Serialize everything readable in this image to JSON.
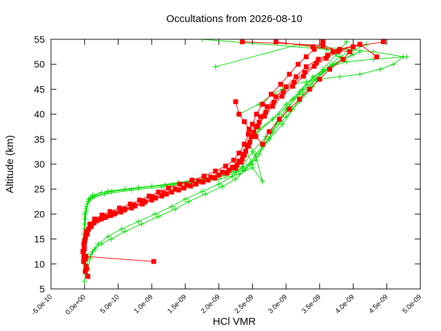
{
  "chart_data": {
    "type": "line",
    "title": "Occultations from 2026-08-10",
    "xlabel": "HCl VMR",
    "ylabel": "Altitude (km)",
    "xlim": [
      -5e-10,
      5e-09
    ],
    "ylim": [
      5,
      55
    ],
    "x_ticks": [
      {
        "v": -5e-10,
        "label": "-5.0e-10"
      },
      {
        "v": 0,
        "label": "0.0e+00"
      },
      {
        "v": 5e-10,
        "label": "5.0e-10"
      },
      {
        "v": 1e-09,
        "label": "1.0e-09"
      },
      {
        "v": 1.5e-09,
        "label": "1.5e-09"
      },
      {
        "v": 2e-09,
        "label": "2.0e-09"
      },
      {
        "v": 2.5e-09,
        "label": "2.5e-09"
      },
      {
        "v": 3e-09,
        "label": "3.0e-09"
      },
      {
        "v": 3.5e-09,
        "label": "3.5e-09"
      },
      {
        "v": 4e-09,
        "label": "4.0e-09"
      },
      {
        "v": 4.5e-09,
        "label": "4.5e-09"
      },
      {
        "v": 5e-09,
        "label": "5.0e-09"
      }
    ],
    "y_ticks": [
      {
        "v": 5,
        "label": "5"
      },
      {
        "v": 10,
        "label": "10"
      },
      {
        "v": 15,
        "label": "15"
      },
      {
        "v": 20,
        "label": "20"
      },
      {
        "v": 25,
        "label": "25"
      },
      {
        "v": 30,
        "label": "30"
      },
      {
        "v": 35,
        "label": "35"
      },
      {
        "v": 40,
        "label": "40"
      },
      {
        "v": 45,
        "label": "45"
      },
      {
        "v": 50,
        "label": "50"
      },
      {
        "v": 55,
        "label": "55"
      }
    ],
    "grid": false,
    "legend": "none",
    "series": [
      {
        "color": "#00dd00",
        "marker": "plus",
        "profiles": [
          {
            "x": [
              0.0,
              2e-11,
              5e-11,
              1e-10,
              1.5e-10,
              2.5e-10,
              4e-10,
              6e-10,
              8.5e-10,
              1.1e-09,
              1.35e-09,
              1.55e-09,
              1.8e-09,
              2.05e-09,
              2.25e-09,
              2.4e-09,
              2.55e-09,
              2.75e-09,
              2.95e-09,
              3.1e-09,
              3.25e-09,
              3.45e-09,
              3.7e-09,
              4e-09
            ],
            "y": [
              6.5,
              9,
              11,
              12,
              13,
              14,
              15,
              16.5,
              18,
              19.5,
              21,
              22.5,
              24,
              25.5,
              27,
              29,
              32,
              35,
              38,
              41,
              44,
              47,
              50,
              52
            ]
          },
          {
            "x": [
              5e-11,
              8e-11,
              1.2e-10,
              2e-10,
              3.5e-10,
              5.5e-10,
              8e-10,
              1.05e-09,
              1.3e-09,
              1.5e-09,
              1.75e-09,
              2e-09,
              2.2e-09,
              2.35e-09,
              2.5e-09,
              2.7e-09,
              2.9e-09,
              3.05e-09,
              3.2e-09,
              3.4e-09,
              3.65e-09,
              3.9e-09,
              4.3e-09,
              4.8e-09
            ],
            "y": [
              9,
              11,
              12.5,
              14,
              15.5,
              17,
              18.5,
              20,
              21.5,
              23,
              24.5,
              26,
              27.5,
              29.5,
              32.5,
              35.5,
              38.5,
              41.5,
              44.5,
              47.5,
              49.5,
              50.5,
              51,
              51.5
            ]
          },
          {
            "x": [
              3e-11,
              1e-11,
              -1e-11,
              0.0,
              4e-11,
              1.5e-10,
              4e-10,
              8e-10,
              1.2e-09,
              1.6e-09,
              1.95e-09,
              2.25e-09,
              2.45e-09,
              2.6e-09,
              2.75e-09,
              2.85e-09,
              3e-09,
              3.2e-09,
              3.45e-09,
              3.7e-09,
              4.1e-09
            ],
            "y": [
              8,
              12,
              16,
              20,
              22,
              23.5,
              24.5,
              25.2,
              25.8,
              26.6,
              27.5,
              28.5,
              30,
              32,
              35,
              38,
              41,
              44,
              47,
              50,
              52.5
            ]
          },
          {
            "x": [
              1e-11,
              -5e-12,
              0.0,
              2e-11,
              6e-11,
              2.5e-10,
              6e-10,
              1e-09,
              1.4e-09,
              1.8e-09,
              2.1e-09,
              2.35e-09,
              2.55e-09,
              2.65e-09,
              2.8e-09,
              3e-09,
              3.2e-09,
              3.4e-09,
              3.55e-09,
              3.8e-09,
              4.2e-09
            ],
            "y": [
              10,
              14,
              18,
              21,
              23,
              24.3,
              25.0,
              25.6,
              26.3,
              27.2,
              28.2,
              29.2,
              30.8,
              33.5,
              36.5,
              39.5,
              42.5,
              45.5,
              48.5,
              51.5,
              54
            ]
          },
          {
            "x": [
              2e-11,
              0.0,
              1e-11,
              3e-11,
              9e-11,
              3e-10,
              7e-10,
              1.15e-09,
              1.6e-09,
              2e-09,
              2.3e-09,
              2.5e-09,
              2.65e-09,
              2.55e-09,
              2.45e-09,
              2.6e-09,
              2.9e-09,
              3.1e-09,
              3.3e-09,
              3.55e-09,
              3.75e-09,
              3.9e-09
            ],
            "y": [
              11,
              15,
              19,
              21.5,
              23.2,
              24.0,
              24.8,
              25.4,
              26.2,
              27.0,
              28.0,
              29.3,
              26.5,
              31.5,
              34,
              37,
              40,
              43,
              46,
              49,
              52,
              54.5
            ]
          },
          {
            "x": [
              1.5e-11,
              5e-12,
              2.5e-11,
              5e-11,
              1.2e-10,
              3.5e-10,
              8e-10,
              1.3e-09,
              1.75e-09,
              2.1e-09,
              2.35e-09,
              2.5e-09,
              2.4e-09,
              2.55e-09,
              2.8e-09,
              3e-09,
              3.25e-09,
              3.5e-09,
              3.85e-09,
              3.6e-09,
              1.75e-09
            ],
            "y": [
              12,
              17,
              20.5,
              22.5,
              23.8,
              24.6,
              25.3,
              25.9,
              26.7,
              27.7,
              28.7,
              29.9,
              33,
              36,
              39,
              42,
              45,
              48,
              51,
              53,
              55
            ]
          },
          {
            "x": [
              2.3e-09,
              2.6e-09,
              2.8e-09,
              2.95e-09,
              3.1e-09,
              3.3e-09,
              3.5e-09,
              3.8e-09,
              4.1e-09,
              4.4e-09,
              4.6e-09,
              4.75e-09,
              4.3e-09,
              3.9e-09,
              3.5e-09,
              3.2e-09,
              1.95e-09
            ],
            "y": [
              40,
              42,
              44,
              45,
              46,
              46.5,
              47,
              47.5,
              48,
              49,
              50,
              51.5,
              52.5,
              53,
              53.5,
              54,
              49.5
            ]
          }
        ]
      },
      {
        "color": "#ff0000",
        "marker": "square",
        "profiles": [
          {
            "x": [
              5e-11,
              2e-11,
              -1e-11,
              -5e-12,
              1e-11,
              3e-11,
              8e-11,
              1.5e-10,
              2.6e-10,
              3.8e-10,
              5.2e-10,
              6.8e-10,
              8.2e-10,
              9.6e-10,
              1.1e-09,
              1.25e-09,
              1.42e-09,
              1.6e-09,
              1.78e-09,
              1.95e-09,
              2.1e-09,
              2.22e-09,
              2.3e-09,
              2.38e-09,
              2.44e-09,
              2.5e-09,
              2.56e-09,
              2.65e-09,
              2.78e-09,
              2.92e-09,
              3.05e-09,
              3.18e-09,
              3.3e-09,
              3.42e-09,
              3.55e-09
            ],
            "y": [
              7.5,
              9.5,
              11.5,
              13.5,
              15,
              16.5,
              18,
              19,
              19.8,
              20.5,
              21.2,
              22,
              22.8,
              23.6,
              24.4,
              25.2,
              26,
              26.8,
              27.6,
              28.6,
              29.6,
              30.8,
              32.2,
              34,
              36,
              38,
              40,
              42,
              44,
              46,
              48,
              50,
              51.5,
              53,
              54.5
            ]
          },
          {
            "x": [
              1e-11,
              -1.5e-11,
              -2e-11,
              0.0,
              4e-11,
              1e-10,
              2e-10,
              3.2e-10,
              4.6e-10,
              6e-10,
              7.4e-10,
              8.8e-10,
              1.02e-09,
              1.18e-09,
              1.35e-09,
              1.52e-09,
              1.7e-09,
              1.88e-09,
              2.05e-09,
              2.2e-09,
              2.3e-09,
              2.36e-09,
              2.42e-09,
              2.48e-09,
              2.55e-09,
              2.62e-09,
              2.72e-09,
              2.85e-09,
              3e-09,
              3.15e-09,
              3.3e-09,
              3.48e-09,
              3.7e-09,
              4e-09,
              4.45e-09
            ],
            "y": [
              8.5,
              10.5,
              12.5,
              14.5,
              16,
              17.5,
              18.8,
              19.5,
              20.2,
              21,
              21.8,
              22.6,
              23.4,
              24.2,
              25,
              25.8,
              26.6,
              27.4,
              28.4,
              29.4,
              30.6,
              32,
              33.8,
              35.5,
              37.5,
              39.5,
              41.5,
              43.5,
              45.5,
              47.5,
              49.5,
              51,
              52.5,
              53.5,
              54.5
            ]
          },
          {
            "x": [
              3e-11,
              5e-12,
              -5e-12,
              1.5e-11,
              6e-11,
              1.4e-10,
              2.5e-10,
              3.9e-10,
              5.4e-10,
              7e-10,
              8.6e-10,
              1e-09,
              1.15e-09,
              1.3e-09,
              1.48e-09,
              1.66e-09,
              1.84e-09,
              2e-09,
              2.15e-09,
              2.27e-09,
              2.35e-09,
              2.4e-09,
              2.46e-09,
              2.52e-09,
              2.6e-09,
              2.7e-09,
              2.82e-09,
              2.96e-09,
              3.12e-09,
              3.28e-09,
              3.45e-09,
              3.62e-09,
              3.8e-09,
              4.1e-09,
              4.35e-09
            ],
            "y": [
              9,
              11,
              13,
              15.5,
              17,
              18.2,
              19,
              19.7,
              20.4,
              21.2,
              22,
              22.8,
              23.6,
              24.4,
              25.2,
              26,
              26.8,
              27.8,
              28.8,
              29.8,
              31,
              32.6,
              34.4,
              36.4,
              38.4,
              40.4,
              42.4,
              44.4,
              46.4,
              48.4,
              50.2,
              51.8,
              53,
              54,
              51.5
            ]
          },
          {
            "x": [
              1.03e-09,
              2e-11,
              -2.5e-11,
              -1e-11,
              2.5e-11,
              8e-11,
              1.7e-10,
              3e-10,
              4.4e-10,
              5.9e-10,
              7.5e-10,
              9e-10,
              1.06e-09,
              1.22e-09,
              1.4e-09,
              1.58e-09,
              1.76e-09,
              1.94e-09,
              2.12e-09,
              2.25e-09,
              2.33e-09,
              2.38e-09,
              2.44e-09,
              2.5e-09,
              2.58e-09,
              2.68e-09,
              2.8e-09,
              2.94e-09,
              3.1e-09,
              3.26e-09,
              3.42e-09,
              3.6e-09,
              3.78e-09,
              3.55e-09,
              2.35e-09
            ],
            "y": [
              10.5,
              11.5,
              12.5,
              14,
              16,
              17.8,
              18.6,
              19.3,
              20,
              20.8,
              21.6,
              22.4,
              23.2,
              24,
              24.8,
              25.6,
              26.4,
              27.2,
              28.2,
              29.2,
              30.4,
              31.8,
              33.6,
              35.6,
              37.6,
              39.6,
              41.6,
              43.6,
              45.6,
              47.6,
              49.6,
              51.2,
              52.6,
              53.8,
              54.5
            ]
          },
          {
            "x": [
              2.25e-09,
              2.3e-09,
              2.38e-09,
              2.45e-09,
              2.55e-09,
              2.65e-09,
              2.75e-09,
              2.9e-09,
              3.05e-09,
              3.2e-09,
              3.35e-09,
              3.5e-09,
              3.65e-09,
              3.85e-09,
              3.95e-09,
              3.4e-09,
              2.85e-09
            ],
            "y": [
              42.5,
              40,
              38.5,
              37,
              35.5,
              34,
              36.5,
              39,
              41,
              43,
              45,
              47,
              49,
              51,
              52.5,
              53.5,
              54.5
            ]
          }
        ]
      }
    ]
  }
}
